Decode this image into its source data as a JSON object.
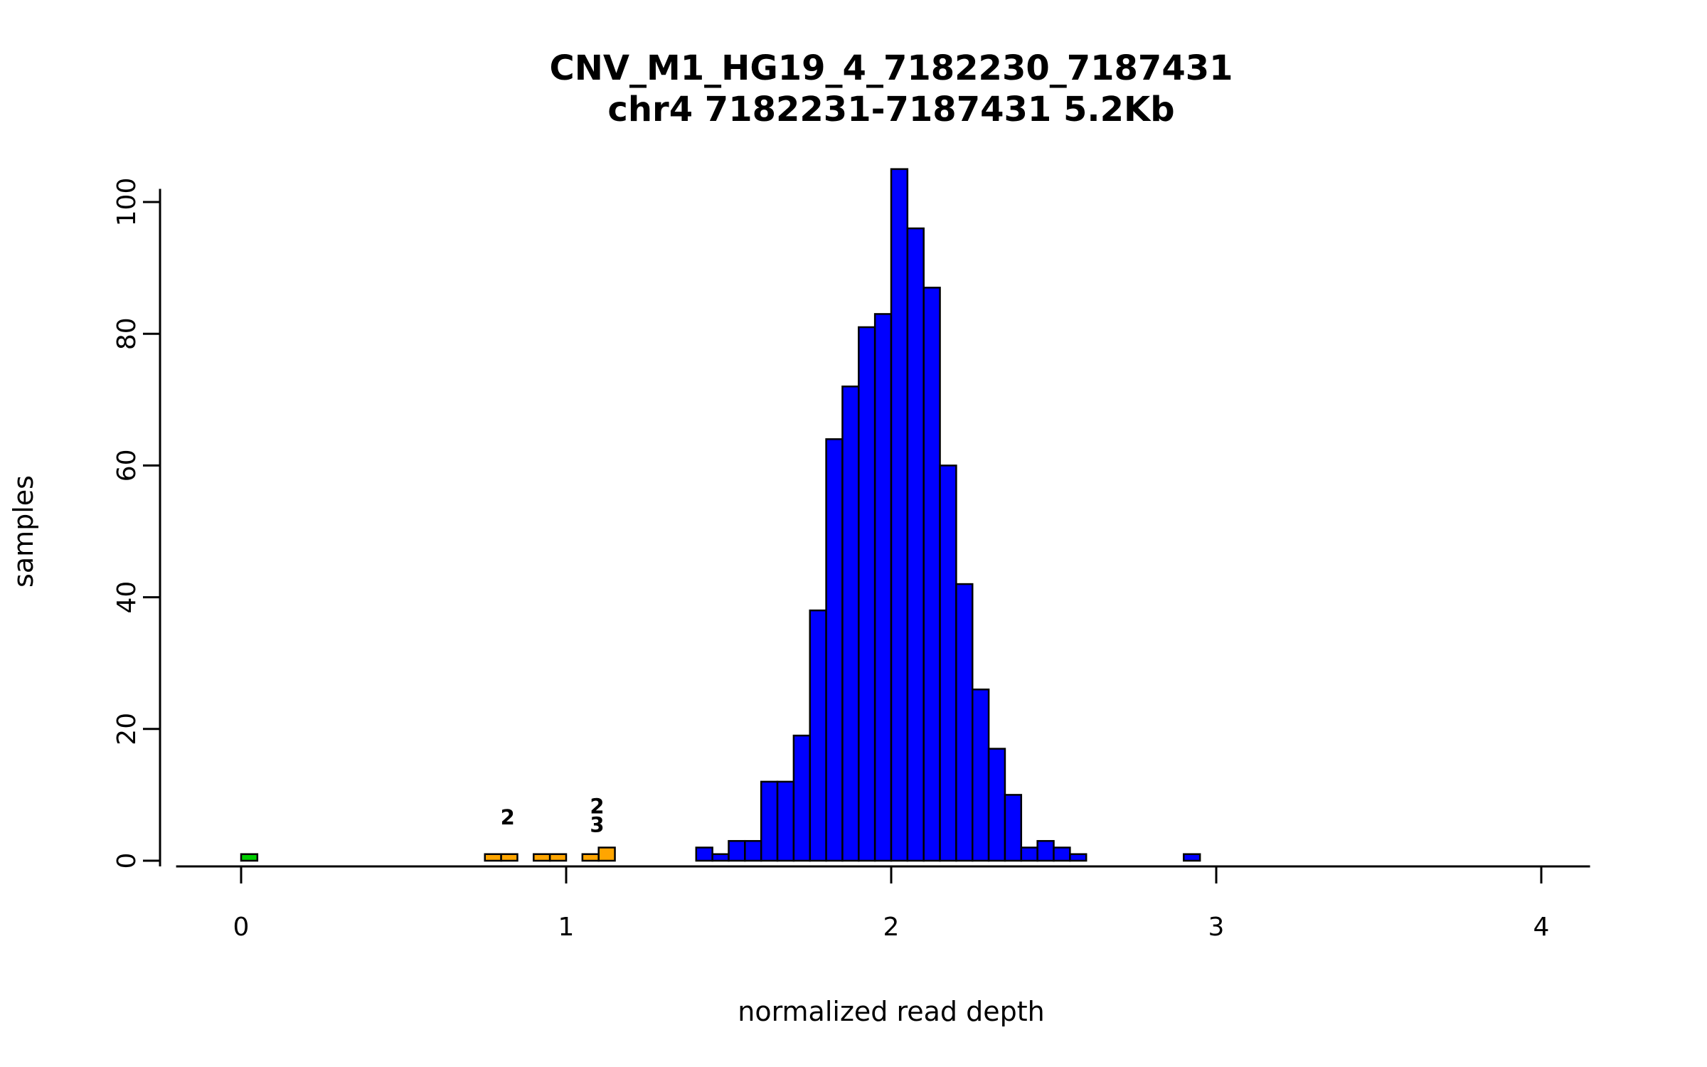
{
  "chart_data": {
    "type": "bar",
    "chart_kind": "histogram",
    "title": "CNV_M1_HG19_4_7182230_7187431",
    "subtitle": "chr4 7182231-7187431 5.2Kb",
    "xlabel": "normalized read depth",
    "ylabel": "samples",
    "xlim": [
      -0.2,
      4.15
    ],
    "ylim": [
      0,
      105
    ],
    "x_ticks": [
      "0",
      "1",
      "2",
      "3",
      "4"
    ],
    "x_tick_values": [
      0,
      1,
      2,
      3,
      4
    ],
    "y_ticks": [
      "0",
      "20",
      "40",
      "60",
      "80",
      "100"
    ],
    "y_tick_values": [
      0,
      20,
      40,
      60,
      80,
      100
    ],
    "bin_width": 0.05,
    "grid": false,
    "legend": "none",
    "colors": {
      "green": "#00CD00",
      "orange": "#FFA500",
      "blue": "#0000FF",
      "stroke": "#000000",
      "background": "#FFFFFF"
    },
    "bars": [
      {
        "x": 0.0,
        "count": 1,
        "color": "green"
      },
      {
        "x": 0.75,
        "count": 1,
        "color": "orange"
      },
      {
        "x": 0.8,
        "count": 1,
        "color": "orange"
      },
      {
        "x": 0.9,
        "count": 1,
        "color": "orange"
      },
      {
        "x": 0.95,
        "count": 1,
        "color": "orange"
      },
      {
        "x": 1.05,
        "count": 1,
        "color": "orange"
      },
      {
        "x": 1.1,
        "count": 2,
        "color": "orange"
      },
      {
        "x": 1.4,
        "count": 2,
        "color": "blue"
      },
      {
        "x": 1.45,
        "count": 1,
        "color": "blue"
      },
      {
        "x": 1.5,
        "count": 3,
        "color": "blue"
      },
      {
        "x": 1.55,
        "count": 3,
        "color": "blue"
      },
      {
        "x": 1.6,
        "count": 12,
        "color": "blue"
      },
      {
        "x": 1.65,
        "count": 12,
        "color": "blue"
      },
      {
        "x": 1.7,
        "count": 19,
        "color": "blue"
      },
      {
        "x": 1.75,
        "count": 38,
        "color": "blue"
      },
      {
        "x": 1.8,
        "count": 64,
        "color": "blue"
      },
      {
        "x": 1.85,
        "count": 72,
        "color": "blue"
      },
      {
        "x": 1.9,
        "count": 81,
        "color": "blue"
      },
      {
        "x": 1.95,
        "count": 83,
        "color": "blue"
      },
      {
        "x": 2.0,
        "count": 105,
        "color": "blue"
      },
      {
        "x": 2.05,
        "count": 96,
        "color": "blue"
      },
      {
        "x": 2.1,
        "count": 87,
        "color": "blue"
      },
      {
        "x": 2.15,
        "count": 60,
        "color": "blue"
      },
      {
        "x": 2.2,
        "count": 42,
        "color": "blue"
      },
      {
        "x": 2.25,
        "count": 26,
        "color": "blue"
      },
      {
        "x": 2.3,
        "count": 17,
        "color": "blue"
      },
      {
        "x": 2.35,
        "count": 10,
        "color": "blue"
      },
      {
        "x": 2.4,
        "count": 2,
        "color": "blue"
      },
      {
        "x": 2.45,
        "count": 3,
        "color": "blue"
      },
      {
        "x": 2.5,
        "count": 2,
        "color": "blue"
      },
      {
        "x": 2.55,
        "count": 1,
        "color": "blue"
      },
      {
        "x": 2.9,
        "count": 1,
        "color": "blue"
      }
    ],
    "annotations": [
      {
        "x": 0.82,
        "y": 5.5,
        "label": "2"
      },
      {
        "x": 1.095,
        "y": 7.2,
        "label": "2"
      },
      {
        "x": 1.095,
        "y": 4.4,
        "label": "3"
      }
    ]
  }
}
